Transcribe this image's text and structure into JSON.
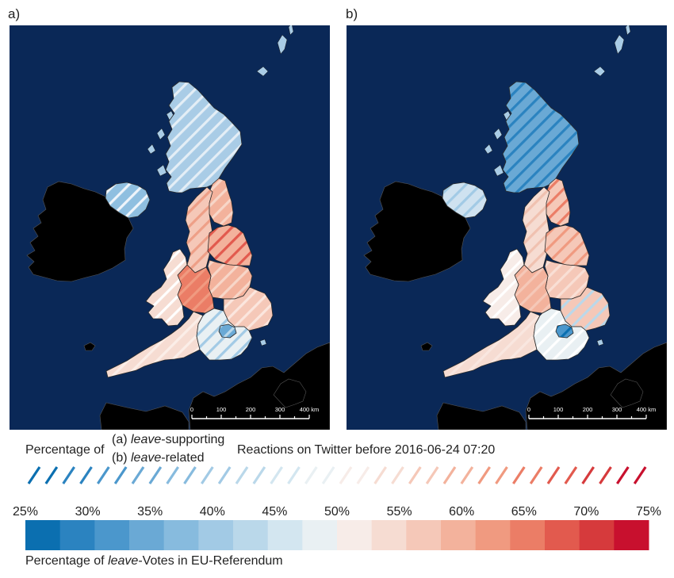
{
  "panels": [
    {
      "label": "a)"
    },
    {
      "label": "b)"
    }
  ],
  "scalebar": {
    "ticks": [
      "0",
      "100",
      "200",
      "300",
      "400 km"
    ]
  },
  "twitter_caption": {
    "prefix": "Percentage of",
    "option_a_prefix": "(a) ",
    "option_a_italic": "leave",
    "option_a_suffix": "-supporting",
    "option_b_prefix": "(b) ",
    "option_b_italic": "leave",
    "option_b_suffix": "-related",
    "suffix": "Reactions on Twitter before 2016-06-24 07:20"
  },
  "vote_caption": {
    "prefix": "Percentage of ",
    "italic": "leave",
    "suffix": "-Votes in EU-Referendum"
  },
  "legend": {
    "tick_labels": [
      "25%",
      "30%",
      "35%",
      "40%",
      "45%",
      "50%",
      "55%",
      "60%",
      "65%",
      "70%",
      "75%"
    ],
    "colors": [
      "#0b6fb0",
      "#2b83c0",
      "#4b97cc",
      "#6aa9d5",
      "#87bbde",
      "#a2cae5",
      "#bad8ea",
      "#d3e6f0",
      "#e9f0f3",
      "#f7ece8",
      "#f6dcd2",
      "#f5c8b8",
      "#f3b29c",
      "#f09a80",
      "#eb7d66",
      "#e25a4e",
      "#d63a3c",
      "#c8102e"
    ]
  },
  "map_colors": {
    "sea": "#0a2857",
    "land_other": "#000000"
  },
  "regions": [
    {
      "name": "Scotland",
      "fill_a": "#a9cce6",
      "hatch_a": "#e4eef6",
      "fill_b": "#6aa9d5",
      "hatch_b": "#2b83c0"
    },
    {
      "name": "Northern Ireland",
      "fill_a": "#8fbfe0",
      "hatch_a": "#eef4fa",
      "fill_b": "#cfe2f0",
      "hatch_b": "#a2cae5"
    },
    {
      "name": "North East",
      "fill_a": "#f3b29c",
      "hatch_a": "#f7d6c8",
      "fill_b": "#f5c8b8",
      "hatch_b": "#eb7d66"
    },
    {
      "name": "North West",
      "fill_a": "#f5c8b8",
      "hatch_a": "#ee9f87",
      "fill_b": "#f6dcd2",
      "hatch_b": "#f0c1b0"
    },
    {
      "name": "Yorkshire and The Humber",
      "fill_a": "#f3b29c",
      "hatch_a": "#e25a4e",
      "fill_b": "#f5c8b8",
      "hatch_b": "#f09a80"
    },
    {
      "name": "East Midlands",
      "fill_a": "#f3b29c",
      "hatch_a": "#f7d6c8",
      "fill_b": "#f5c8b8",
      "hatch_b": "#f9dfd5"
    },
    {
      "name": "West Midlands",
      "fill_a": "#eb7d66",
      "hatch_a": "#f09a80",
      "fill_b": "#f3b29c",
      "hatch_b": "#f5c8b8"
    },
    {
      "name": "Wales",
      "fill_a": "#f6dcd2",
      "hatch_a": "#ffffff",
      "fill_b": "#f7ece8",
      "hatch_b": "#ffffff"
    },
    {
      "name": "East of England",
      "fill_a": "#f5c8b8",
      "hatch_a": "#fbe6de",
      "fill_b": "#f5c8b8",
      "hatch_b": "#bad8ea"
    },
    {
      "name": "South West",
      "fill_a": "#f6dcd2",
      "hatch_a": "#fbeee8",
      "fill_b": "#f6dcd2",
      "hatch_b": "#f9e7e0"
    },
    {
      "name": "South East",
      "fill_a": "#e9f0f3",
      "hatch_a": "#a2cae5",
      "fill_b": "#e9f0f3",
      "hatch_b": "#ffffff"
    },
    {
      "name": "London",
      "fill_a": "#6aa9d5",
      "hatch_a": "#bad8ea",
      "fill_b": "#4b97cc",
      "hatch_b": "#0b6fb0"
    }
  ]
}
